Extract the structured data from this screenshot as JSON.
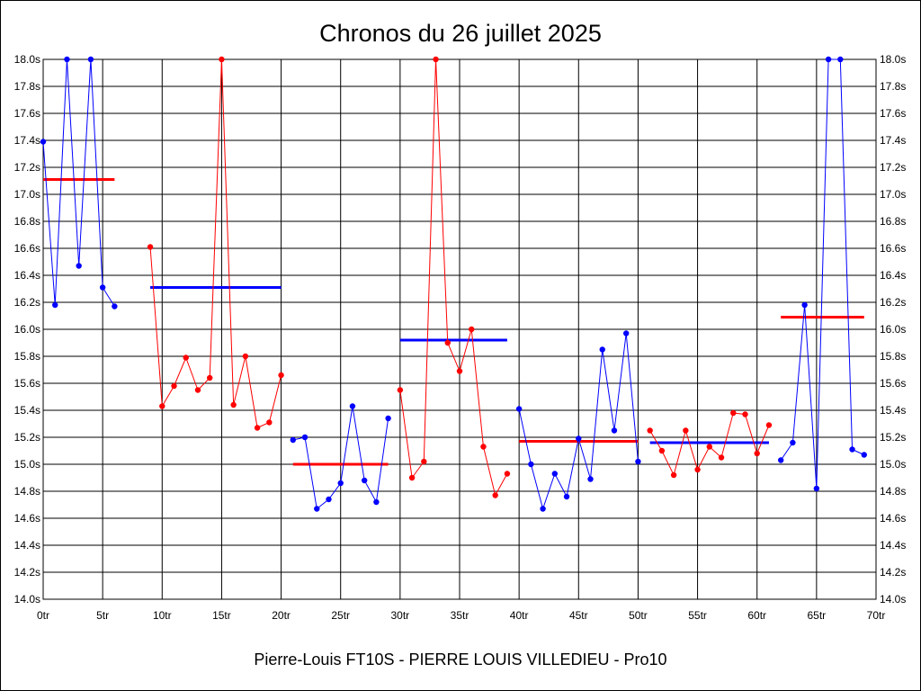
{
  "chart_data": {
    "type": "line",
    "title": "Chronos du 26 juillet 2025",
    "footer": "Pierre-Louis FT10S - PIERRE LOUIS VILLEDIEU - Pro10",
    "x_ticks": [
      "0tr",
      "5tr",
      "10tr",
      "15tr",
      "20tr",
      "25tr",
      "30tr",
      "35tr",
      "40tr",
      "45tr",
      "50tr",
      "55tr",
      "60tr",
      "65tr",
      "70tr"
    ],
    "y_ticks": [
      "14.0s",
      "14.2s",
      "14.4s",
      "14.6s",
      "14.8s",
      "15.0s",
      "15.2s",
      "15.4s",
      "15.6s",
      "15.8s",
      "16.0s",
      "16.2s",
      "16.4s",
      "16.6s",
      "16.8s",
      "17.0s",
      "17.2s",
      "17.4s",
      "17.6s",
      "17.8s",
      "18.0s"
    ],
    "xlim": [
      0,
      70
    ],
    "ylim": [
      14.0,
      18.0
    ],
    "grid": true,
    "colors": {
      "blue": "#0000ff",
      "red": "#ff0000"
    },
    "series": [
      {
        "color": "blue",
        "x": [
          0,
          1,
          2,
          3,
          4,
          5,
          6
        ],
        "y": [
          17.39,
          16.18,
          18.0,
          16.47,
          18.0,
          16.31,
          16.17
        ]
      },
      {
        "color": "red",
        "x": [
          9,
          10,
          11,
          12,
          13,
          14,
          15,
          16,
          17,
          18,
          19,
          20
        ],
        "y": [
          16.61,
          15.43,
          15.58,
          15.79,
          15.55,
          15.64,
          18.0,
          15.44,
          15.8,
          15.27,
          15.31,
          15.66
        ]
      },
      {
        "color": "blue",
        "x": [
          21,
          22,
          23,
          24,
          25,
          26,
          27,
          28,
          29
        ],
        "y": [
          15.18,
          15.2,
          14.67,
          14.74,
          14.86,
          15.43,
          14.88,
          14.72,
          15.34
        ]
      },
      {
        "color": "red",
        "x": [
          30,
          31,
          32,
          33,
          34,
          35,
          36,
          37,
          38,
          39
        ],
        "y": [
          15.55,
          14.9,
          15.02,
          18.0,
          15.9,
          15.69,
          16.0,
          15.13,
          14.77,
          14.93
        ]
      },
      {
        "color": "blue",
        "x": [
          40,
          41,
          42,
          43,
          44,
          45,
          46,
          47,
          48,
          49,
          50
        ],
        "y": [
          15.41,
          15.0,
          14.67,
          14.93,
          14.76,
          15.19,
          14.89,
          15.85,
          15.25,
          15.97,
          15.02
        ]
      },
      {
        "color": "red",
        "x": [
          51,
          52,
          53,
          54,
          55,
          56,
          57,
          58,
          59,
          60,
          61
        ],
        "y": [
          15.25,
          15.1,
          14.92,
          15.25,
          14.96,
          15.13,
          15.05,
          15.38,
          15.37,
          15.08,
          15.29
        ]
      },
      {
        "color": "blue",
        "x": [
          62,
          63,
          64,
          65,
          66,
          67,
          68,
          69
        ],
        "y": [
          15.03,
          15.16,
          16.18,
          14.82,
          18.0,
          18.0,
          15.11,
          15.07
        ]
      }
    ],
    "averages": [
      {
        "color": "red",
        "x": [
          0,
          6
        ],
        "y": 17.11
      },
      {
        "color": "blue",
        "x": [
          9,
          20
        ],
        "y": 16.31
      },
      {
        "color": "red",
        "x": [
          21,
          29
        ],
        "y": 15.0
      },
      {
        "color": "blue",
        "x": [
          30,
          39
        ],
        "y": 15.92
      },
      {
        "color": "red",
        "x": [
          40,
          50
        ],
        "y": 15.17
      },
      {
        "color": "blue",
        "x": [
          51,
          61
        ],
        "y": 15.16
      },
      {
        "color": "red",
        "x": [
          62,
          69
        ],
        "y": 16.09
      }
    ]
  }
}
